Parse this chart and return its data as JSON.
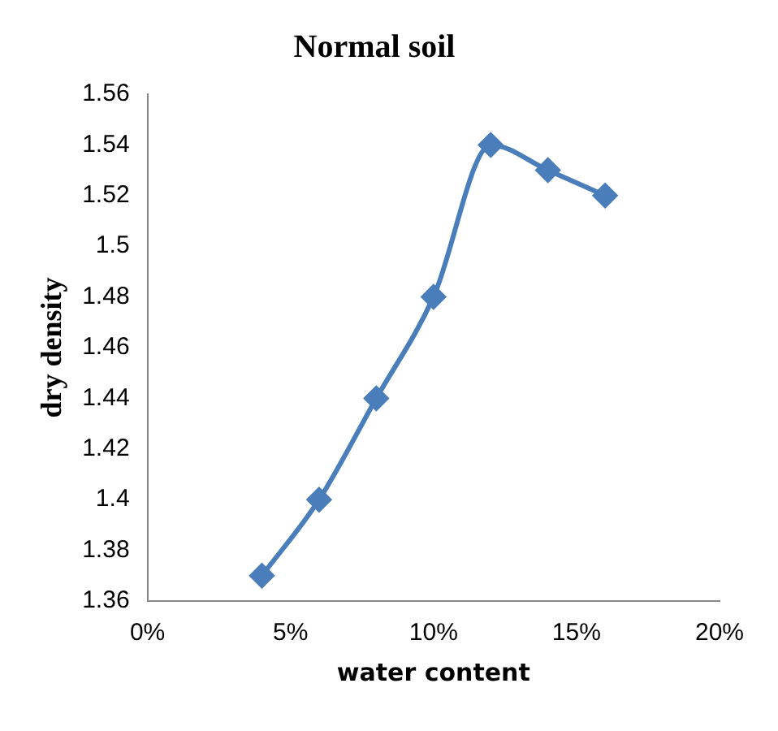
{
  "chart_data": {
    "type": "line",
    "title": "Normal soil",
    "xlabel": "water content",
    "ylabel": "dry density",
    "x": [
      4,
      6,
      8,
      10,
      12,
      14,
      16
    ],
    "series": [
      {
        "color": "#4a7ebb",
        "values": [
          1.37,
          1.4,
          1.44,
          1.48,
          1.54,
          1.53,
          1.52
        ]
      }
    ],
    "xlim": [
      0,
      20
    ],
    "xticks": [
      {
        "value": 0,
        "label": "0%"
      },
      {
        "value": 5,
        "label": "5%"
      },
      {
        "value": 10,
        "label": "10%"
      },
      {
        "value": 15,
        "label": "15%"
      },
      {
        "value": 20,
        "label": "20%"
      }
    ],
    "ylim": [
      1.36,
      1.56
    ],
    "yticks": [
      1.36,
      1.38,
      1.4,
      1.42,
      1.44,
      1.46,
      1.48,
      1.5,
      1.52,
      1.54,
      1.56
    ],
    "grid": false,
    "legend": false,
    "marker": "diamond",
    "line_style": "solid"
  }
}
